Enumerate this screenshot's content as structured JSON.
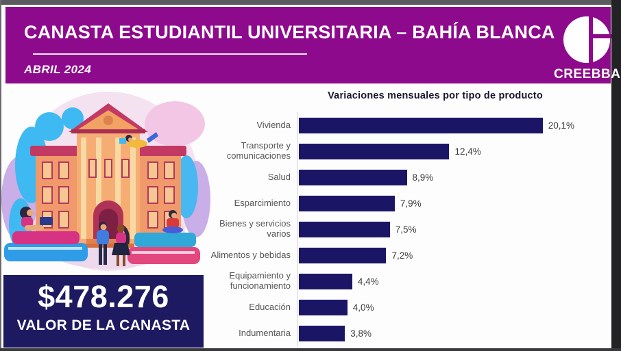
{
  "header": {
    "title": "CANASTA ESTUDIANTIL UNIVERSITARIA – BAHÍA BLANCA",
    "subtitle": "ABRIL 2024",
    "logo_text": "CREEBBA",
    "bg_color": "#8e0a8c"
  },
  "basket": {
    "value": "$478.276",
    "caption": "VALOR DE LA CANASTA",
    "bg_color": "#1d1a61"
  },
  "chart_data": {
    "type": "bar",
    "orientation": "horizontal",
    "title": "Variaciones mensuales por tipo de producto",
    "categories": [
      "Vivienda",
      "Transporte y comunicaciones",
      "Salud",
      "Esparcimiento",
      "Bienes y servicios varios",
      "Alimentos y bebidas",
      "Equipamiento y funcionamiento",
      "Educación",
      "Indumentaria"
    ],
    "values": [
      20.1,
      12.4,
      8.9,
      7.9,
      7.5,
      7.2,
      4.4,
      4.0,
      3.8
    ],
    "value_labels": [
      "20,1%",
      "12,4%",
      "8,9%",
      "7,9%",
      "7,5%",
      "7,2%",
      "4,4%",
      "4,0%",
      "3,8%"
    ],
    "xlim": [
      0,
      21.5
    ],
    "bar_color": "#1b1566",
    "axis_line_color": "#cfcfcf",
    "grid": false,
    "legend": "none"
  },
  "illustration": {
    "name": "university-students"
  }
}
